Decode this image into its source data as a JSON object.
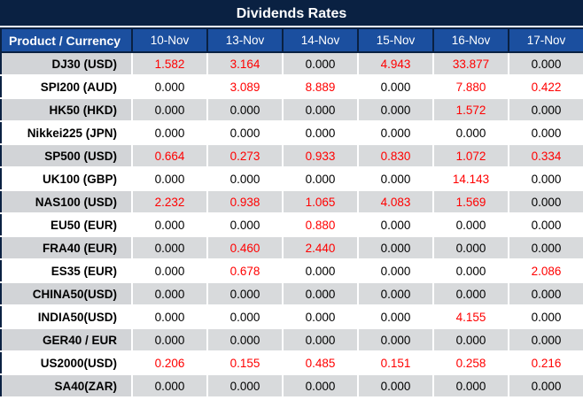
{
  "title": "Dividends Rates",
  "colors": {
    "title_bg": "#0a2142",
    "header_bg": "#1b4f9f",
    "header_text": "#ffffff",
    "row_alt_bg": "#d8dadc",
    "row_plain_bg": "#ffffff",
    "value_text": "#000000",
    "value_nonzero": "#ff0000"
  },
  "table": {
    "product_header": "Product / Currency",
    "date_headers": [
      "10-Nov",
      "13-Nov",
      "14-Nov",
      "15-Nov",
      "16-Nov",
      "17-Nov"
    ],
    "zero_value": "0.000",
    "rows": [
      {
        "product": "DJ30 (USD)",
        "values": [
          "1.582",
          "3.164",
          "0.000",
          "4.943",
          "33.877",
          "0.000"
        ]
      },
      {
        "product": "SPI200 (AUD)",
        "values": [
          "0.000",
          "3.089",
          "8.889",
          "0.000",
          "7.880",
          "0.422"
        ]
      },
      {
        "product": "HK50 (HKD)",
        "values": [
          "0.000",
          "0.000",
          "0.000",
          "0.000",
          "1.572",
          "0.000"
        ]
      },
      {
        "product": "Nikkei225 (JPN)",
        "values": [
          "0.000",
          "0.000",
          "0.000",
          "0.000",
          "0.000",
          "0.000"
        ]
      },
      {
        "product": "SP500 (USD)",
        "values": [
          "0.664",
          "0.273",
          "0.933",
          "0.830",
          "1.072",
          "0.334"
        ]
      },
      {
        "product": "UK100 (GBP)",
        "values": [
          "0.000",
          "0.000",
          "0.000",
          "0.000",
          "14.143",
          "0.000"
        ]
      },
      {
        "product": "NAS100 (USD)",
        "values": [
          "2.232",
          "0.938",
          "1.065",
          "4.083",
          "1.569",
          "0.000"
        ]
      },
      {
        "product": "EU50 (EUR)",
        "values": [
          "0.000",
          "0.000",
          "0.880",
          "0.000",
          "0.000",
          "0.000"
        ]
      },
      {
        "product": "FRA40 (EUR)",
        "values": [
          "0.000",
          "0.460",
          "2.440",
          "0.000",
          "0.000",
          "0.000"
        ]
      },
      {
        "product": "ES35 (EUR)",
        "values": [
          "0.000",
          "0.678",
          "0.000",
          "0.000",
          "0.000",
          "2.086"
        ]
      },
      {
        "product": "CHINA50(USD)",
        "values": [
          "0.000",
          "0.000",
          "0.000",
          "0.000",
          "0.000",
          "0.000"
        ]
      },
      {
        "product": "INDIA50(USD)",
        "values": [
          "0.000",
          "0.000",
          "0.000",
          "0.000",
          "4.155",
          "0.000"
        ]
      },
      {
        "product": "GER40 / EUR",
        "values": [
          "0.000",
          "0.000",
          "0.000",
          "0.000",
          "0.000",
          "0.000"
        ]
      },
      {
        "product": "US2000(USD)",
        "values": [
          "0.206",
          "0.155",
          "0.485",
          "0.151",
          "0.258",
          "0.216"
        ]
      },
      {
        "product": "SA40(ZAR)",
        "values": [
          "0.000",
          "0.000",
          "0.000",
          "0.000",
          "0.000",
          "0.000"
        ]
      }
    ]
  }
}
